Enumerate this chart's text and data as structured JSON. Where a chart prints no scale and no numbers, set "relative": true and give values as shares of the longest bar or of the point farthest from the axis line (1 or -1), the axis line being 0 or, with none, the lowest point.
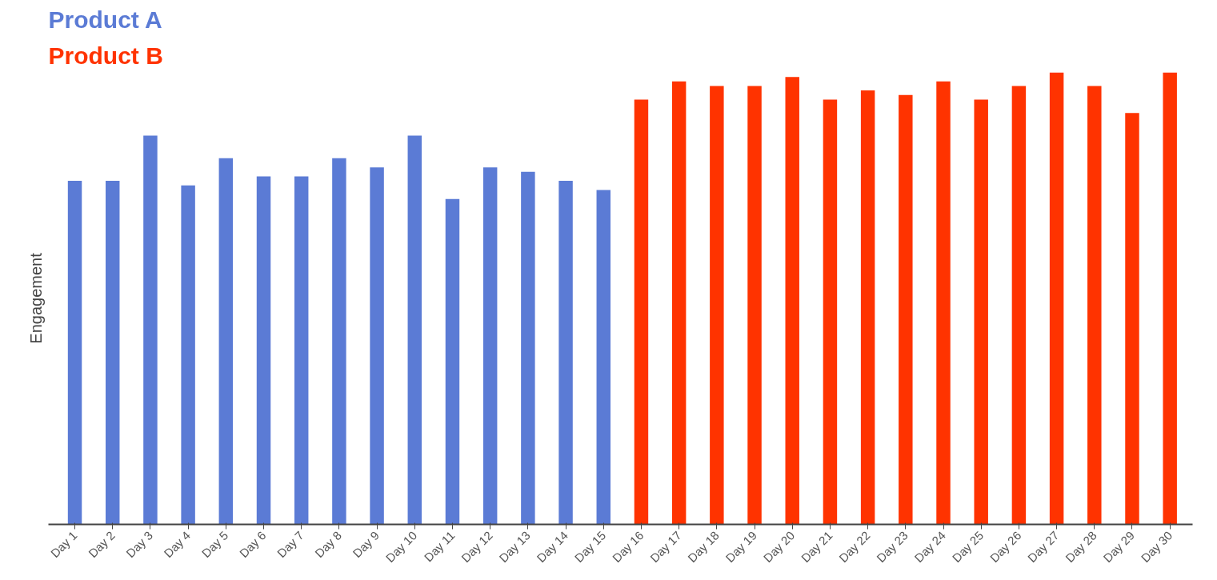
{
  "chart_data": {
    "type": "bar",
    "ylabel": "Engagement",
    "relative": true,
    "legend": "top left",
    "grid": false,
    "categories": [
      "Day 1",
      "Day 2",
      "Day 3",
      "Day 4",
      "Day 5",
      "Day 6",
      "Day 7",
      "Day 8",
      "Day 9",
      "Day 10",
      "Day 11",
      "Day 12",
      "Day 13",
      "Day 14",
      "Day 15",
      "Day 16",
      "Day 17",
      "Day 18",
      "Day 19",
      "Day 20",
      "Day 21",
      "Day 22",
      "Day 23",
      "Day 24",
      "Day 25",
      "Day 26",
      "Day 27",
      "Day 28",
      "Day 29",
      "Day 30"
    ],
    "series": [
      {
        "name": "Product A",
        "color": "#5b7bd5",
        "values": [
          0.76,
          0.76,
          0.86,
          0.75,
          0.81,
          0.77,
          0.77,
          0.81,
          0.79,
          0.86,
          0.72,
          0.79,
          0.78,
          0.76,
          0.74,
          null,
          null,
          null,
          null,
          null,
          null,
          null,
          null,
          null,
          null,
          null,
          null,
          null,
          null,
          null
        ]
      },
      {
        "name": "Product B",
        "color": "#ff3300",
        "values": [
          null,
          null,
          null,
          null,
          null,
          null,
          null,
          null,
          null,
          null,
          null,
          null,
          null,
          null,
          null,
          0.94,
          0.98,
          0.97,
          0.97,
          0.99,
          0.94,
          0.96,
          0.95,
          0.98,
          0.94,
          0.97,
          1.0,
          0.97,
          0.91,
          1.0
        ]
      }
    ]
  }
}
